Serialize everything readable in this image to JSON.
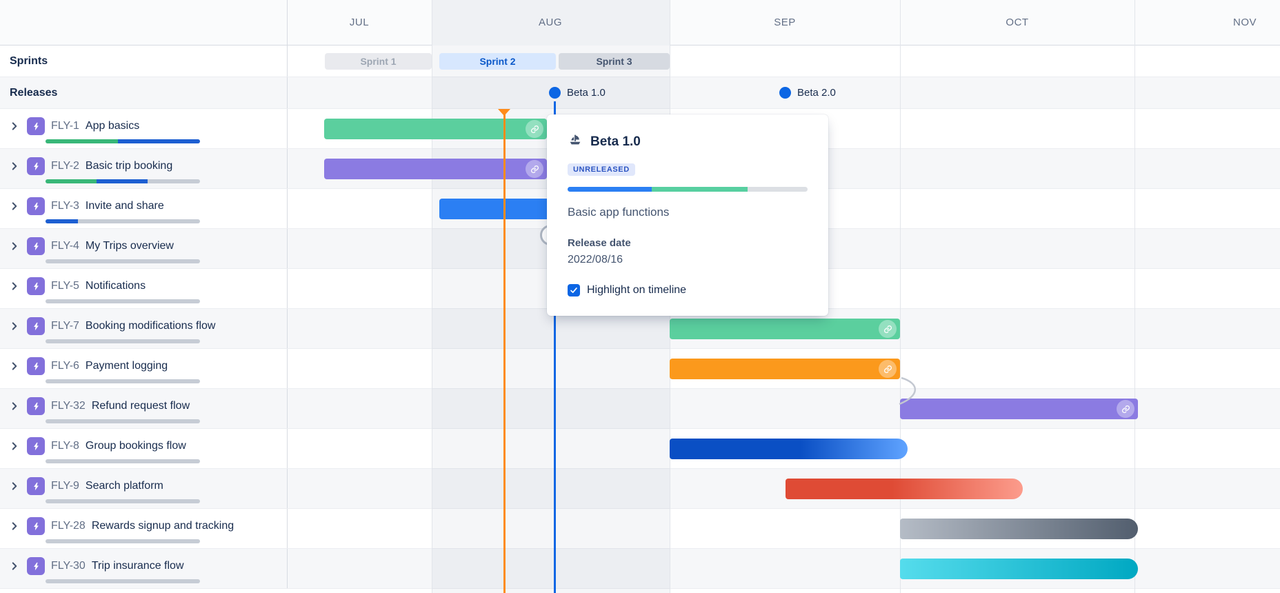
{
  "header": {
    "months": [
      "JUL",
      "AUG",
      "SEP",
      "OCT",
      "NOV"
    ],
    "highlighted_month": "AUG"
  },
  "left_panel": {
    "sprints_label": "Sprints",
    "releases_label": "Releases"
  },
  "sprints": [
    {
      "label": "Sprint 1",
      "state": "completed"
    },
    {
      "label": "Sprint 2",
      "state": "active"
    },
    {
      "label": "Sprint 3",
      "state": "future"
    }
  ],
  "releases": [
    {
      "label": "Beta 1.0",
      "highlighted": true
    },
    {
      "label": "Beta 2.0",
      "highlighted": false
    }
  ],
  "epics": [
    {
      "key": "FLY-1",
      "name": "App basics",
      "progress": [
        {
          "color": "#38B778",
          "pct": 47
        },
        {
          "color": "#1D5FD2",
          "pct": 53
        }
      ],
      "bar": {
        "color": "green",
        "link_icon": true
      }
    },
    {
      "key": "FLY-2",
      "name": "Basic trip booking",
      "progress": [
        {
          "color": "#38B778",
          "pct": 33
        },
        {
          "color": "#1D5FD2",
          "pct": 33
        }
      ],
      "bar": {
        "color": "purple",
        "link_icon": true
      }
    },
    {
      "key": "FLY-3",
      "name": "Invite and share",
      "progress": [
        {
          "color": "#1D5FD2",
          "pct": 21
        }
      ],
      "bar": {
        "color": "blue",
        "link_icon": false
      }
    },
    {
      "key": "FLY-4",
      "name": "My Trips overview",
      "progress": [],
      "bar": null
    },
    {
      "key": "FLY-5",
      "name": "Notifications",
      "progress": [],
      "bar": null
    },
    {
      "key": "FLY-7",
      "name": "Booking modifications flow",
      "progress": [],
      "bar": {
        "color": "green",
        "link_icon": true
      }
    },
    {
      "key": "FLY-6",
      "name": "Payment logging",
      "progress": [],
      "bar": {
        "color": "orange",
        "link_icon": true
      }
    },
    {
      "key": "FLY-32",
      "name": "Refund request flow",
      "progress": [],
      "bar": {
        "color": "purple",
        "link_icon": true
      }
    },
    {
      "key": "FLY-8",
      "name": "Group bookings flow",
      "progress": [],
      "bar": {
        "color": "gradient-blue",
        "link_icon": false
      }
    },
    {
      "key": "FLY-9",
      "name": "Search platform",
      "progress": [],
      "bar": {
        "color": "gradient-red",
        "link_icon": false
      }
    },
    {
      "key": "FLY-28",
      "name": "Rewards signup and tracking",
      "progress": [],
      "bar": {
        "color": "gradient-gray",
        "link_icon": false
      }
    },
    {
      "key": "FLY-30",
      "name": "Trip insurance flow",
      "progress": [],
      "bar": {
        "color": "gradient-teal",
        "link_icon": false
      }
    }
  ],
  "popup": {
    "title": "Beta 1.0",
    "status_badge": "UNRELEASED",
    "progress": [
      {
        "color": "#2B7FF3",
        "pct": 35
      },
      {
        "color": "#57CFA0",
        "pct": 40
      }
    ],
    "description": "Basic app functions",
    "release_date_label": "Release date",
    "release_date": "2022/08/16",
    "checkbox_label": "Highlight on timeline",
    "checkbox_checked": true
  },
  "colors": {
    "today_marker": "#FF8C1A",
    "release_marker": "#0C66E4",
    "epic_icon": "#8270DB",
    "bar_green": "#5BCF9E",
    "bar_purple": "#8B7BE2",
    "bar_blue": "#2B7FF3",
    "bar_orange": "#FB991C",
    "progress_done_green": "#38B778",
    "progress_inprogress_blue": "#1D5FD2",
    "progress_track_gray": "#C6CCD5",
    "month_highlight": "#EFF1F4"
  },
  "icons": {
    "link": "link-icon",
    "chevron": "chevron-right-icon",
    "epic": "epic-lightning-icon",
    "release": "release-ship-icon",
    "checkbox": "checkbox-checked-icon",
    "release_dot": "release-milestone-dot",
    "today": "today-marker"
  }
}
